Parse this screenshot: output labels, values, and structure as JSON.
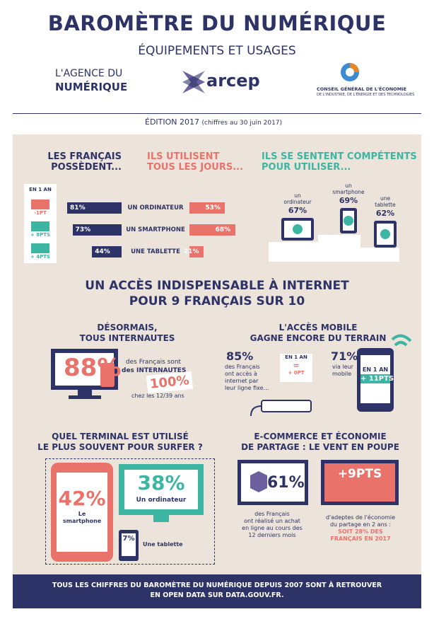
{
  "header": {
    "title": "BAROMÈTRE DU NUMÉRIQUE",
    "subtitle": "ÉQUIPEMENTS ET USAGES",
    "logos": {
      "agence": [
        "L'AGENCE DU",
        "NUMÉRIQUE"
      ],
      "arcep": "arcep",
      "cge": [
        "CONSEIL GÉNÉRAL DE L'ÉCONOMIE",
        "DE L'INDUSTRIE, DE L'ÉNERGIE ET DES TECHNOLOGIES"
      ]
    },
    "edition": "ÉDITION 2017",
    "edition_note": "(chiffres au 30 juin 2017)"
  },
  "equipment": {
    "headings": {
      "own": [
        "LES FRANÇAIS",
        "POSSÈDENT..."
      ],
      "daily": [
        "ILS UTILISENT",
        "TOUS LES JOURS..."
      ],
      "skill": [
        "ILS SE SENTENT COMPÉTENTS",
        "POUR UTILISER..."
      ]
    },
    "change_title": "EN 1 AN",
    "rows": [
      {
        "device": "UN ORDINATEUR",
        "change": "-1PT",
        "own": {
          "value": 81,
          "label": "81%"
        },
        "daily": {
          "value": 53,
          "label": "53%"
        }
      },
      {
        "device": "UN SMARTPHONE",
        "change": "+ 8PTS",
        "own": {
          "value": 73,
          "label": "73%"
        },
        "daily": {
          "value": 68,
          "label": "68%"
        }
      },
      {
        "device": "UNE TABLETTE",
        "change": "+ 4PTS",
        "own": {
          "value": 44,
          "label": "44%"
        },
        "daily": {
          "value": 21,
          "label": "21%"
        }
      }
    ],
    "skills": [
      {
        "device": [
          "un",
          "ordinateur"
        ],
        "label": "67%"
      },
      {
        "device": [
          "un",
          "smartphone"
        ],
        "label": "69%"
      },
      {
        "device": [
          "une",
          "tablette"
        ],
        "label": "62%"
      }
    ]
  },
  "internet": {
    "title": [
      "UN ACCÈS INDISPENSABLE À INTERNET",
      "POUR 9 FRANÇAIS SUR 10"
    ],
    "users": {
      "title": [
        "DÉSORMAIS,",
        "TOUS INTERNAUTES"
      ],
      "big": "88%",
      "text": [
        "des Français sont",
        "des INTERNAUTES"
      ],
      "young": "100%",
      "young_text": "chez les 12/39 ans"
    },
    "mobile": {
      "title": [
        "L'ACCÈS MOBILE",
        "GAGNE ENCORE DU TERRAIN"
      ],
      "fixed": "85%",
      "fixed_text": [
        "des Français",
        "ont accès à",
        "internet par",
        "leur ligne fixe..."
      ],
      "fixed_badge": [
        "EN 1 AN",
        "=",
        "+ 0PT"
      ],
      "mobile": "71%",
      "mobile_text": [
        "via leur",
        "mobile"
      ],
      "mobile_badge": [
        "EN 1 AN",
        "+ 11PTS"
      ]
    },
    "terminal": {
      "title": [
        "QUEL TERMINAL EST UTILISÉ",
        "LE PLUS SOUVENT POUR SURFER ?"
      ],
      "smartphone": "42%",
      "smartphone_label": [
        "Le",
        "smartphone"
      ],
      "computer": "38%",
      "computer_label": "Un ordinateur",
      "tablet": "7%",
      "tablet_label": "Une tablette"
    },
    "ecommerce": {
      "title": [
        "E-COMMERCE ET ÉCONOMIE",
        "DE PARTAGE : LE VENT EN POUPE"
      ],
      "buy": "61%",
      "buy_text": [
        "des Français",
        "ont réalisé un achat",
        "en ligne au cours des",
        "12 derniers mois"
      ],
      "share": "+9PTS",
      "share_text": [
        "d'adeptes de l'économie",
        "du partage en 2 ans :"
      ],
      "share_total": [
        "SOIT 28% DES",
        "FRANÇAIS EN 2017"
      ]
    }
  },
  "footer": [
    "TOUS LES CHIFFRES DU BAROMÈTRE DU NUMÉRIQUE DEPUIS 2007 SONT À RETROUVER",
    "EN OPEN DATA SUR DATA.GOUV.FR."
  ]
}
